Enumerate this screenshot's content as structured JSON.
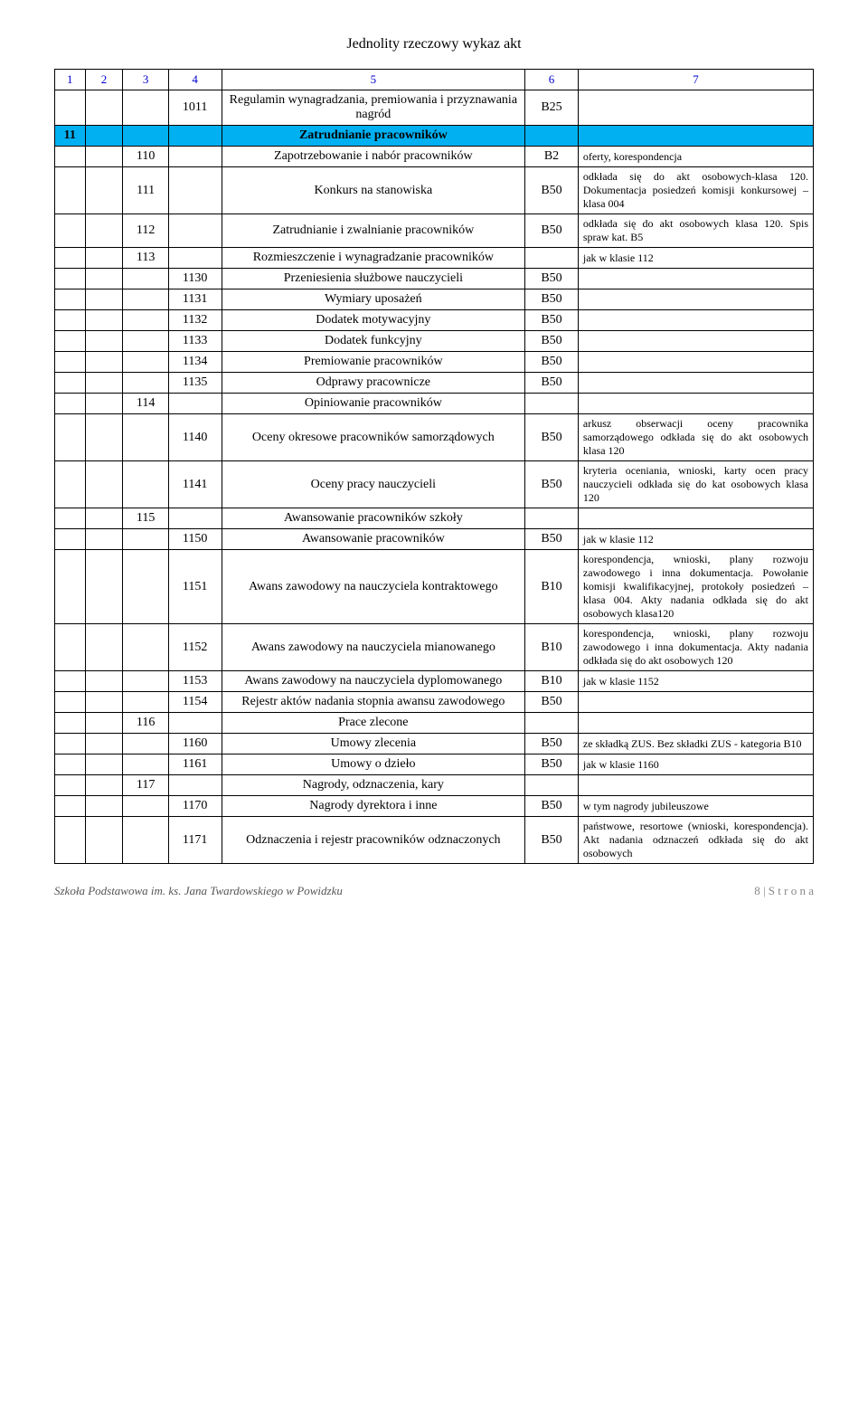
{
  "header": "Jednolity rzeczowy wykaz akt",
  "cols": [
    "1",
    "2",
    "3",
    "4",
    "5",
    "6",
    "7"
  ],
  "footer_left": "Szkoła Podstawowa im. ks. Jana Twardowskiego w Powidzku",
  "footer_right": "8 | S t r o n a",
  "rows": [
    {
      "c": [
        "",
        "",
        "",
        "1011",
        "Regulamin wynagradzania, premiowania i przyznawania nagród",
        "B25",
        ""
      ]
    },
    {
      "band": true,
      "c": [
        "11",
        "",
        "",
        "",
        "Zatrudnianie pracowników",
        "",
        ""
      ]
    },
    {
      "c": [
        "",
        "",
        "110",
        "",
        "Zapotrzebowanie i nabór pracowników",
        "B2",
        "oferty, korespondencja"
      ]
    },
    {
      "c": [
        "",
        "",
        "111",
        "",
        "Konkurs na stanowiska",
        "B50",
        "odkłada się do akt osobowych-klasa 120. Dokumentacja posiedzeń komisji konkursowej – klasa 004"
      ]
    },
    {
      "c": [
        "",
        "",
        "112",
        "",
        "Zatrudnianie i zwalnianie pracowników",
        "B50",
        "odkłada się do akt osobowych klasa 120. Spis spraw kat. B5"
      ]
    },
    {
      "c": [
        "",
        "",
        "113",
        "",
        "Rozmieszczenie i wynagradzanie pracowników",
        "",
        "jak w klasie 112"
      ]
    },
    {
      "c": [
        "",
        "",
        "",
        "1130",
        "Przeniesienia służbowe nauczycieli",
        "B50",
        ""
      ]
    },
    {
      "c": [
        "",
        "",
        "",
        "1131",
        "Wymiary uposażeń",
        "B50",
        ""
      ]
    },
    {
      "c": [
        "",
        "",
        "",
        "1132",
        "Dodatek motywacyjny",
        "B50",
        ""
      ]
    },
    {
      "c": [
        "",
        "",
        "",
        "1133",
        "Dodatek funkcyjny",
        "B50",
        ""
      ]
    },
    {
      "c": [
        "",
        "",
        "",
        "1134",
        "Premiowanie pracowników",
        "B50",
        ""
      ]
    },
    {
      "c": [
        "",
        "",
        "",
        "1135",
        "Odprawy pracownicze",
        "B50",
        ""
      ]
    },
    {
      "c": [
        "",
        "",
        "114",
        "",
        "Opiniowanie pracowników",
        "",
        ""
      ]
    },
    {
      "c": [
        "",
        "",
        "",
        "1140",
        "Oceny okresowe pracowników samorządowych",
        "B50",
        "arkusz obserwacji oceny pracownika samorządowego odkłada się do akt osobowych klasa 120"
      ]
    },
    {
      "c": [
        "",
        "",
        "",
        "1141",
        "Oceny pracy nauczycieli",
        "B50",
        "kryteria oceniania, wnioski, karty ocen pracy nauczycieli odkłada się do kat osobowych klasa 120"
      ]
    },
    {
      "c": [
        "",
        "",
        "115",
        "",
        "Awansowanie pracowników szkoły",
        "",
        ""
      ]
    },
    {
      "c": [
        "",
        "",
        "",
        "1150",
        "Awansowanie pracowników",
        "B50",
        "jak w klasie 112"
      ]
    },
    {
      "c": [
        "",
        "",
        "",
        "1151",
        "Awans zawodowy na nauczyciela kontraktowego",
        "B10",
        "korespondencja, wnioski, plany rozwoju zawodowego i inna dokumentacja. Powołanie komisji kwalifikacyjnej, protokoły posiedzeń – klasa 004. Akty nadania odkłada się do akt osobowych klasa120"
      ]
    },
    {
      "c": [
        "",
        "",
        "",
        "1152",
        "Awans zawodowy na nauczyciela mianowanego",
        "B10",
        "korespondencja, wnioski, plany rozwoju zawodowego i inna dokumentacja. Akty nadania odkłada się do akt osobowych 120"
      ]
    },
    {
      "c": [
        "",
        "",
        "",
        "1153",
        "Awans zawodowy na nauczyciela dyplomowanego",
        "B10",
        "jak w klasie 1152"
      ]
    },
    {
      "c": [
        "",
        "",
        "",
        "1154",
        "Rejestr aktów nadania stopnia awansu zawodowego",
        "B50",
        ""
      ]
    },
    {
      "c": [
        "",
        "",
        "116",
        "",
        "Prace zlecone",
        "",
        ""
      ]
    },
    {
      "c": [
        "",
        "",
        "",
        "1160",
        "Umowy zlecenia",
        "B50",
        "ze składką ZUS.   Bez składki ZUS - kategoria B10"
      ]
    },
    {
      "c": [
        "",
        "",
        "",
        "1161",
        "Umowy o dzieło",
        "B50",
        "jak w klasie 1160"
      ]
    },
    {
      "c": [
        "",
        "",
        "117",
        "",
        "Nagrody, odznaczenia, kary",
        "",
        ""
      ]
    },
    {
      "c": [
        "",
        "",
        "",
        "1170",
        "Nagrody dyrektora i inne",
        "B50",
        "w tym nagrody jubileuszowe"
      ]
    },
    {
      "c": [
        "",
        "",
        "",
        "1171",
        "Odznaczenia i rejestr pracowników odznaczonych",
        "B50",
        "państwowe, resortowe (wnioski, korespondencja). Akt nadania odznaczeń odkłada się do akt osobowych"
      ]
    }
  ]
}
